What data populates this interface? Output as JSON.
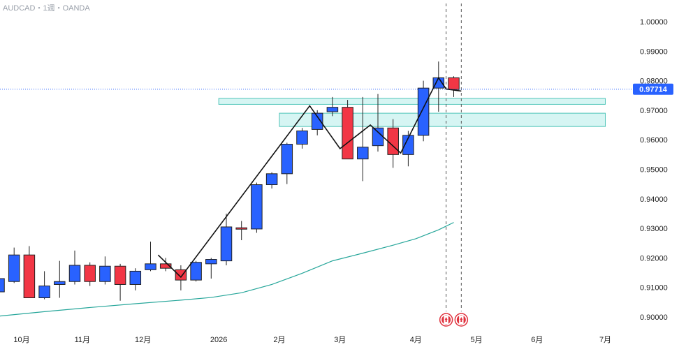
{
  "header": {
    "title": "AUDCAD・1週・OANDA"
  },
  "colors": {
    "up": "#2962ff",
    "down": "#f23645",
    "ma": "#26a69a",
    "zone_fill": "#d6f5f3",
    "zone_stroke": "#4fc4b8",
    "price_tag": "#2962ff"
  },
  "current_price": {
    "label": "0.97714",
    "value": 0.97714
  },
  "chart_data": {
    "type": "candlestick",
    "symbol": "AUDCAD",
    "timeframe": "1週",
    "broker": "OANDA",
    "ylim": [
      0.9,
      1.0
    ],
    "y_ticks": [
      {
        "value": 1.0,
        "label": "1.00000"
      },
      {
        "value": 0.99,
        "label": "0.99000"
      },
      {
        "value": 0.98,
        "label": "0.98000"
      },
      {
        "value": 0.97,
        "label": "0.97000"
      },
      {
        "value": 0.96,
        "label": "0.96000"
      },
      {
        "value": 0.95,
        "label": "0.95000"
      },
      {
        "value": 0.94,
        "label": "0.94000"
      },
      {
        "value": 0.93,
        "label": "0.93000"
      },
      {
        "value": 0.92,
        "label": "0.92000"
      },
      {
        "value": 0.91,
        "label": "0.91000"
      },
      {
        "value": 0.9,
        "label": "0.90000"
      }
    ],
    "x_ticks": [
      {
        "index": 1.5,
        "label": "10月"
      },
      {
        "index": 5.5,
        "label": "11月"
      },
      {
        "index": 9.5,
        "label": "12月"
      },
      {
        "index": 14.5,
        "label": "2026"
      },
      {
        "index": 18.5,
        "label": "2月"
      },
      {
        "index": 22.5,
        "label": "3月"
      },
      {
        "index": 27.5,
        "label": "4月"
      },
      {
        "index": 31.5,
        "label": "5月"
      },
      {
        "index": 35.5,
        "label": "6月"
      },
      {
        "index": 40.0,
        "label": "7月"
      }
    ],
    "candles": [
      {
        "o": 0.9085,
        "h": 0.9135,
        "l": 0.907,
        "c": 0.913
      },
      {
        "o": 0.912,
        "h": 0.9235,
        "l": 0.9115,
        "c": 0.921
      },
      {
        "o": 0.921,
        "h": 0.924,
        "l": 0.9065,
        "c": 0.9065
      },
      {
        "o": 0.9065,
        "h": 0.9155,
        "l": 0.906,
        "c": 0.9105
      },
      {
        "o": 0.911,
        "h": 0.919,
        "l": 0.9065,
        "c": 0.912
      },
      {
        "o": 0.912,
        "h": 0.9225,
        "l": 0.911,
        "c": 0.9175
      },
      {
        "o": 0.9175,
        "h": 0.9185,
        "l": 0.9105,
        "c": 0.912
      },
      {
        "o": 0.912,
        "h": 0.9205,
        "l": 0.911,
        "c": 0.9172
      },
      {
        "o": 0.9172,
        "h": 0.918,
        "l": 0.9055,
        "c": 0.911
      },
      {
        "o": 0.911,
        "h": 0.9165,
        "l": 0.909,
        "c": 0.9155
      },
      {
        "o": 0.916,
        "h": 0.9255,
        "l": 0.9155,
        "c": 0.918
      },
      {
        "o": 0.918,
        "h": 0.92,
        "l": 0.9155,
        "c": 0.9165
      },
      {
        "o": 0.916,
        "h": 0.9175,
        "l": 0.909,
        "c": 0.9125
      },
      {
        "o": 0.9125,
        "h": 0.919,
        "l": 0.912,
        "c": 0.9185
      },
      {
        "o": 0.918,
        "h": 0.92,
        "l": 0.913,
        "c": 0.9195
      },
      {
        "o": 0.919,
        "h": 0.935,
        "l": 0.9175,
        "c": 0.9305
      },
      {
        "o": 0.9302,
        "h": 0.9325,
        "l": 0.926,
        "c": 0.9298
      },
      {
        "o": 0.9298,
        "h": 0.9455,
        "l": 0.9285,
        "c": 0.9448
      },
      {
        "o": 0.9448,
        "h": 0.949,
        "l": 0.9435,
        "c": 0.9485
      },
      {
        "o": 0.9485,
        "h": 0.959,
        "l": 0.945,
        "c": 0.9585
      },
      {
        "o": 0.9585,
        "h": 0.964,
        "l": 0.957,
        "c": 0.963
      },
      {
        "o": 0.9635,
        "h": 0.97,
        "l": 0.9615,
        "c": 0.969
      },
      {
        "o": 0.9695,
        "h": 0.9745,
        "l": 0.968,
        "c": 0.971
      },
      {
        "o": 0.971,
        "h": 0.9735,
        "l": 0.9535,
        "c": 0.9535
      },
      {
        "o": 0.9535,
        "h": 0.9745,
        "l": 0.946,
        "c": 0.9575
      },
      {
        "o": 0.958,
        "h": 0.9755,
        "l": 0.956,
        "c": 0.964
      },
      {
        "o": 0.964,
        "h": 0.967,
        "l": 0.9505,
        "c": 0.955
      },
      {
        "o": 0.955,
        "h": 0.963,
        "l": 0.951,
        "c": 0.9615
      },
      {
        "o": 0.9615,
        "h": 0.98,
        "l": 0.9595,
        "c": 0.9775
      },
      {
        "o": 0.9775,
        "h": 0.9865,
        "l": 0.9695,
        "c": 0.981
      },
      {
        "o": 0.981,
        "h": 0.9815,
        "l": 0.9745,
        "c": 0.977
      }
    ],
    "swing_line": [
      {
        "i": 10.5,
        "v": 0.921
      },
      {
        "i": 12.0,
        "v": 0.9135
      },
      {
        "i": 20.5,
        "v": 0.9715
      },
      {
        "i": 22.5,
        "v": 0.957
      },
      {
        "i": 24.5,
        "v": 0.965
      },
      {
        "i": 26.5,
        "v": 0.9555
      },
      {
        "i": 29.0,
        "v": 0.981
      },
      {
        "i": 29.5,
        "v": 0.9772
      },
      {
        "i": 30.5,
        "v": 0.9765
      }
    ],
    "moving_average": [
      {
        "i": 0,
        "v": 0.9003
      },
      {
        "i": 3,
        "v": 0.9018
      },
      {
        "i": 6,
        "v": 0.9032
      },
      {
        "i": 9,
        "v": 0.9045
      },
      {
        "i": 12,
        "v": 0.9057
      },
      {
        "i": 14,
        "v": 0.9066
      },
      {
        "i": 16,
        "v": 0.9082
      },
      {
        "i": 18,
        "v": 0.911
      },
      {
        "i": 20,
        "v": 0.9148
      },
      {
        "i": 22,
        "v": 0.919
      },
      {
        "i": 24,
        "v": 0.9216
      },
      {
        "i": 26,
        "v": 0.9243
      },
      {
        "i": 27.5,
        "v": 0.9265
      },
      {
        "i": 29,
        "v": 0.9295
      },
      {
        "i": 30,
        "v": 0.932
      }
    ],
    "zones": [
      {
        "i_start": 14.5,
        "i_end": 40.0,
        "top": 0.974,
        "bottom": 0.972
      },
      {
        "i_start": 18.5,
        "i_end": 40.0,
        "top": 0.969,
        "bottom": 0.9645
      }
    ],
    "event_lines": [
      {
        "i": 29.5
      },
      {
        "i": 30.5
      }
    ]
  }
}
